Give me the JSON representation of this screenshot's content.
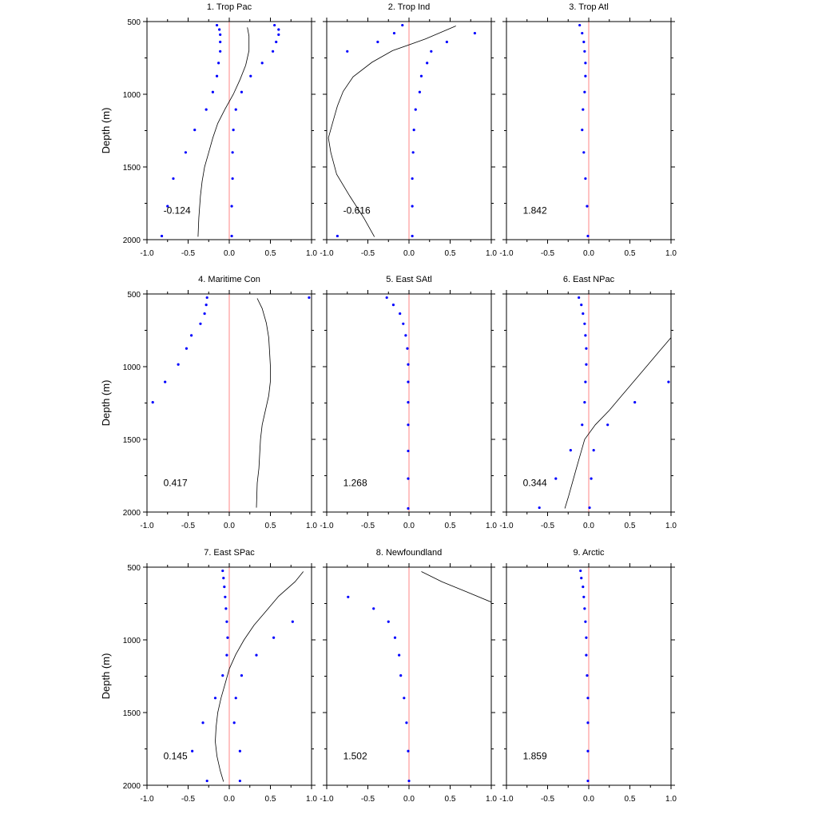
{
  "colors": {
    "dots": "#0000ff",
    "zero_line": "#ff9999",
    "curve": "#000000"
  },
  "chart_data": {
    "type": "scatter",
    "layout": "3x3 panel grid",
    "ylabel": "Depth (m)",
    "xlim": [
      -1.0,
      1.0
    ],
    "ylim": [
      500,
      2000
    ],
    "y_reversed": true,
    "xticks": [
      "-1.0",
      "-0.5",
      "0.0",
      "0.5",
      "1.0"
    ],
    "yticks": [
      "500",
      "1000",
      "1500",
      "2000"
    ],
    "grid": false,
    "panels": [
      {
        "title": "1. Trop Pac",
        "annotation": "-0.124",
        "dots_left": [
          [
            -0.15,
            525
          ],
          [
            -0.12,
            555
          ],
          [
            -0.11,
            590
          ],
          [
            -0.11,
            640
          ],
          [
            -0.11,
            705
          ],
          [
            -0.13,
            785
          ],
          [
            -0.15,
            875
          ],
          [
            -0.2,
            985
          ],
          [
            -0.28,
            1105
          ],
          [
            -0.42,
            1245
          ],
          [
            -0.53,
            1400
          ],
          [
            -0.68,
            1580
          ],
          [
            -0.75,
            1770
          ],
          [
            -0.82,
            1975
          ]
        ],
        "dots_right": [
          [
            0.55,
            525
          ],
          [
            0.6,
            555
          ],
          [
            0.6,
            590
          ],
          [
            0.57,
            640
          ],
          [
            0.53,
            705
          ],
          [
            0.4,
            785
          ],
          [
            0.26,
            875
          ],
          [
            0.15,
            985
          ],
          [
            0.08,
            1105
          ],
          [
            0.05,
            1245
          ],
          [
            0.04,
            1400
          ],
          [
            0.04,
            1580
          ],
          [
            0.03,
            1770
          ],
          [
            0.03,
            1975
          ]
        ],
        "curve": [
          [
            0.22,
            540
          ],
          [
            0.24,
            600
          ],
          [
            0.24,
            700
          ],
          [
            0.2,
            800
          ],
          [
            0.13,
            900
          ],
          [
            0.05,
            1000
          ],
          [
            -0.05,
            1100
          ],
          [
            -0.14,
            1200
          ],
          [
            -0.2,
            1300
          ],
          [
            -0.25,
            1400
          ],
          [
            -0.3,
            1500
          ],
          [
            -0.33,
            1600
          ],
          [
            -0.35,
            1700
          ],
          [
            -0.37,
            1850
          ],
          [
            -0.38,
            1980
          ]
        ]
      },
      {
        "title": "2. Trop Ind",
        "annotation": "-0.616",
        "dots_left": [
          [
            -0.08,
            525
          ],
          [
            -0.18,
            580
          ],
          [
            -0.38,
            640
          ],
          [
            -0.75,
            705
          ],
          [
            -0.87,
            1975
          ]
        ],
        "dots_right": [
          [
            0.8,
            580
          ],
          [
            0.46,
            640
          ],
          [
            0.27,
            705
          ],
          [
            0.22,
            785
          ],
          [
            0.15,
            875
          ],
          [
            0.13,
            985
          ],
          [
            0.08,
            1105
          ],
          [
            0.06,
            1245
          ],
          [
            0.05,
            1400
          ],
          [
            0.04,
            1580
          ],
          [
            0.04,
            1770
          ],
          [
            0.04,
            1975
          ]
        ],
        "curve": [
          [
            0.57,
            530
          ],
          [
            0.2,
            620
          ],
          [
            -0.2,
            700
          ],
          [
            -0.45,
            780
          ],
          [
            -0.68,
            880
          ],
          [
            -0.8,
            980
          ],
          [
            -0.87,
            1080
          ],
          [
            -0.92,
            1180
          ],
          [
            -0.98,
            1300
          ],
          [
            -0.95,
            1400
          ],
          [
            -0.88,
            1550
          ],
          [
            -0.72,
            1700
          ],
          [
            -0.55,
            1850
          ],
          [
            -0.42,
            1980
          ]
        ]
      },
      {
        "title": "3. Trop Atl",
        "annotation": "1.842",
        "dots_left": [
          [
            -0.11,
            525
          ],
          [
            -0.08,
            580
          ],
          [
            -0.06,
            640
          ],
          [
            -0.05,
            705
          ],
          [
            -0.04,
            785
          ],
          [
            -0.04,
            875
          ],
          [
            -0.05,
            985
          ],
          [
            -0.07,
            1105
          ],
          [
            -0.08,
            1245
          ],
          [
            -0.06,
            1400
          ],
          [
            -0.04,
            1580
          ],
          [
            -0.02,
            1770
          ],
          [
            -0.01,
            1975
          ]
        ],
        "dots_right": [],
        "curve": []
      },
      {
        "title": "4. Maritime Con",
        "annotation": "0.417",
        "dots_left": [
          [
            -0.27,
            525
          ],
          [
            -0.28,
            575
          ],
          [
            -0.3,
            635
          ],
          [
            -0.35,
            705
          ],
          [
            -0.46,
            785
          ],
          [
            -0.52,
            875
          ],
          [
            -0.62,
            985
          ],
          [
            -0.78,
            1105
          ],
          [
            -0.93,
            1245
          ]
        ],
        "dots_right": [
          [
            0.97,
            525
          ]
        ],
        "curve": [
          [
            0.34,
            530
          ],
          [
            0.4,
            600
          ],
          [
            0.45,
            700
          ],
          [
            0.48,
            800
          ],
          [
            0.49,
            900
          ],
          [
            0.5,
            1000
          ],
          [
            0.5,
            1100
          ],
          [
            0.48,
            1200
          ],
          [
            0.44,
            1300
          ],
          [
            0.4,
            1400
          ],
          [
            0.38,
            1500
          ],
          [
            0.37,
            1600
          ],
          [
            0.36,
            1700
          ],
          [
            0.34,
            1800
          ],
          [
            0.33,
            1970
          ]
        ]
      },
      {
        "title": "5. East SAtl",
        "annotation": "1.268",
        "dots_left": [
          [
            -0.27,
            525
          ],
          [
            -0.19,
            575
          ],
          [
            -0.11,
            635
          ],
          [
            -0.07,
            705
          ],
          [
            -0.04,
            785
          ],
          [
            -0.02,
            875
          ],
          [
            -0.01,
            985
          ],
          [
            -0.01,
            1105
          ],
          [
            -0.01,
            1245
          ],
          [
            -0.01,
            1400
          ],
          [
            -0.01,
            1580
          ],
          [
            -0.01,
            1770
          ],
          [
            -0.01,
            1975
          ]
        ],
        "dots_right": [],
        "curve": []
      },
      {
        "title": "6. East NPac",
        "annotation": "0.344",
        "dots_left": [
          [
            -0.12,
            525
          ],
          [
            -0.09,
            575
          ],
          [
            -0.07,
            635
          ],
          [
            -0.05,
            705
          ],
          [
            -0.04,
            785
          ],
          [
            -0.03,
            875
          ],
          [
            -0.03,
            985
          ],
          [
            -0.04,
            1105
          ],
          [
            -0.05,
            1245
          ],
          [
            -0.08,
            1400
          ],
          [
            -0.22,
            1575
          ],
          [
            -0.4,
            1770
          ],
          [
            -0.6,
            1970
          ]
        ],
        "dots_right": [
          [
            0.97,
            1105
          ],
          [
            0.56,
            1245
          ],
          [
            0.23,
            1400
          ],
          [
            0.06,
            1575
          ],
          [
            0.03,
            1770
          ],
          [
            0.01,
            1970
          ]
        ],
        "curve": [
          [
            1.0,
            800
          ],
          [
            0.85,
            900
          ],
          [
            0.7,
            1000
          ],
          [
            0.55,
            1100
          ],
          [
            0.4,
            1200
          ],
          [
            0.25,
            1300
          ],
          [
            0.08,
            1400
          ],
          [
            -0.05,
            1500
          ],
          [
            -0.1,
            1600
          ],
          [
            -0.15,
            1700
          ],
          [
            -0.2,
            1800
          ],
          [
            -0.25,
            1900
          ],
          [
            -0.29,
            1975
          ]
        ]
      },
      {
        "title": "7. East SPac",
        "annotation": "0.145",
        "dots_left": [
          [
            -0.08,
            525
          ],
          [
            -0.07,
            575
          ],
          [
            -0.06,
            635
          ],
          [
            -0.05,
            705
          ],
          [
            -0.04,
            785
          ],
          [
            -0.03,
            875
          ],
          [
            -0.02,
            985
          ],
          [
            -0.03,
            1105
          ],
          [
            -0.08,
            1245
          ],
          [
            -0.17,
            1400
          ],
          [
            -0.32,
            1570
          ],
          [
            -0.45,
            1765
          ],
          [
            -0.27,
            1970
          ]
        ],
        "dots_right": [
          [
            0.77,
            875
          ],
          [
            0.54,
            985
          ],
          [
            0.33,
            1105
          ],
          [
            0.15,
            1245
          ],
          [
            0.08,
            1400
          ],
          [
            0.06,
            1570
          ],
          [
            0.13,
            1765
          ],
          [
            0.13,
            1970
          ]
        ],
        "curve": [
          [
            0.9,
            530
          ],
          [
            0.8,
            600
          ],
          [
            0.6,
            700
          ],
          [
            0.45,
            800
          ],
          [
            0.3,
            900
          ],
          [
            0.18,
            1000
          ],
          [
            0.08,
            1100
          ],
          [
            0.0,
            1200
          ],
          [
            -0.05,
            1300
          ],
          [
            -0.1,
            1400
          ],
          [
            -0.14,
            1500
          ],
          [
            -0.16,
            1600
          ],
          [
            -0.17,
            1700
          ],
          [
            -0.15,
            1800
          ],
          [
            -0.11,
            1900
          ],
          [
            -0.07,
            1975
          ]
        ]
      },
      {
        "title": "8. Newfoundland",
        "annotation": "1.502",
        "dots_left": [
          [
            -0.74,
            705
          ],
          [
            -0.43,
            785
          ],
          [
            -0.25,
            875
          ],
          [
            -0.17,
            985
          ],
          [
            -0.12,
            1105
          ],
          [
            -0.1,
            1245
          ],
          [
            -0.06,
            1400
          ],
          [
            -0.03,
            1570
          ],
          [
            -0.01,
            1765
          ],
          [
            0.0,
            1970
          ]
        ],
        "dots_right": [],
        "curve": [
          [
            0.15,
            530
          ],
          [
            0.4,
            600
          ],
          [
            0.7,
            670
          ],
          [
            1.0,
            740
          ]
        ]
      },
      {
        "title": "9. Arctic",
        "annotation": "1.859",
        "dots_left": [
          [
            -0.1,
            525
          ],
          [
            -0.09,
            575
          ],
          [
            -0.07,
            635
          ],
          [
            -0.06,
            705
          ],
          [
            -0.05,
            785
          ],
          [
            -0.04,
            875
          ],
          [
            -0.03,
            985
          ],
          [
            -0.03,
            1105
          ],
          [
            -0.02,
            1245
          ],
          [
            -0.01,
            1400
          ],
          [
            -0.01,
            1570
          ],
          [
            -0.01,
            1765
          ],
          [
            -0.01,
            1970
          ]
        ],
        "dots_right": [],
        "curve": []
      }
    ]
  }
}
